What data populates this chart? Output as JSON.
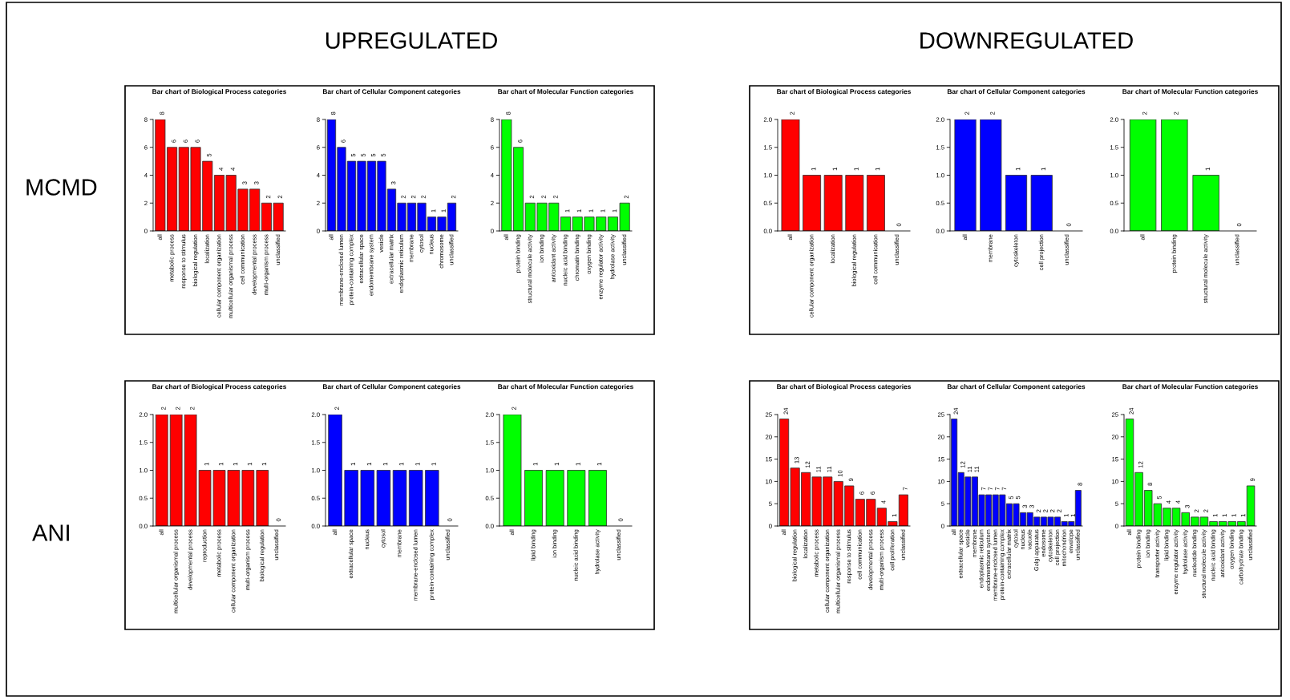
{
  "chart_data": [
    {
      "type": "bar",
      "title": "Bar chart of Biological Process categories",
      "categories": [
        "all",
        "metabolic process",
        "response to stimulus",
        "biological regulation",
        "localization",
        "cellular component organization",
        "multicellular organismal process",
        "cell communication",
        "developmental process",
        "multi-organism process",
        "unclassified"
      ],
      "values": [
        8,
        6,
        6,
        6,
        5,
        4,
        4,
        3,
        3,
        2,
        2
      ],
      "color": "#ff0000",
      "ylim": [
        0,
        8
      ],
      "yticks": [
        0,
        2,
        4,
        6,
        8
      ],
      "data_labels": true
    },
    {
      "type": "bar",
      "title": "Bar chart of Cellular Component categories",
      "categories": [
        "all",
        "membrane-enclosed lumen",
        "protein-containing complex",
        "extracellular space",
        "endomembrane system",
        "vesicle",
        "extracellular matrix",
        "endoplasmic reticulum",
        "membrane",
        "cytosol",
        "nucleus",
        "chromosome",
        "unclassified"
      ],
      "values": [
        8,
        6,
        5,
        5,
        5,
        5,
        3,
        2,
        2,
        2,
        1,
        1,
        2
      ],
      "color": "#0000ff",
      "ylim": [
        0,
        8
      ],
      "yticks": [
        0,
        2,
        4,
        6,
        8
      ],
      "data_labels": true
    },
    {
      "type": "bar",
      "title": "Bar chart of Molecular Function categories",
      "categories": [
        "all",
        "protein binding",
        "structural molecule activity",
        "ion binding",
        "antioxidant activity",
        "nucleic acid binding",
        "chromatin binding",
        "oxygen binding",
        "enzyme regulator activity",
        "hydrolase activity",
        "unclassified"
      ],
      "values": [
        8,
        6,
        2,
        2,
        2,
        1,
        1,
        1,
        1,
        1,
        2
      ],
      "color": "#00ff00",
      "ylim": [
        0,
        8
      ],
      "yticks": [
        0,
        2,
        4,
        6,
        8
      ],
      "data_labels": true
    },
    {
      "type": "bar",
      "title": "Bar chart of Biological Process categories",
      "categories": [
        "all",
        "cellular component organization",
        "localization",
        "biological regulation",
        "cell communication",
        "unclassified"
      ],
      "values": [
        2,
        1,
        1,
        1,
        1,
        0
      ],
      "color": "#ff0000",
      "ylim": [
        0,
        2
      ],
      "yticks": [
        {
          "value": 0,
          "label": "0.0"
        },
        {
          "value": 0.5,
          "label": "0.5"
        },
        {
          "value": 1,
          "label": "1.0"
        },
        {
          "value": 1.5,
          "label": "1.5"
        },
        {
          "value": 2,
          "label": "2.0"
        }
      ],
      "data_labels": true
    },
    {
      "type": "bar",
      "title": "Bar chart of Cellular Component categories",
      "categories": [
        "all",
        "membrane",
        "cytoskeleton",
        "cell projection",
        "unclassified"
      ],
      "values": [
        2,
        2,
        1,
        1,
        0
      ],
      "color": "#0000ff",
      "ylim": [
        0,
        2
      ],
      "yticks": [
        {
          "value": 0,
          "label": "0.0"
        },
        {
          "value": 0.5,
          "label": "0.5"
        },
        {
          "value": 1,
          "label": "1.0"
        },
        {
          "value": 1.5,
          "label": "1.5"
        },
        {
          "value": 2,
          "label": "2.0"
        }
      ],
      "data_labels": true
    },
    {
      "type": "bar",
      "title": "Bar chart of Molecular Function categories",
      "categories": [
        "all",
        "protein binding",
        "structural molecule activity",
        "unclassified"
      ],
      "values": [
        2,
        2,
        1,
        0
      ],
      "color": "#00ff00",
      "ylim": [
        0,
        2
      ],
      "yticks": [
        {
          "value": 0,
          "label": "0.0"
        },
        {
          "value": 0.5,
          "label": "0.5"
        },
        {
          "value": 1,
          "label": "1.0"
        },
        {
          "value": 1.5,
          "label": "1.5"
        },
        {
          "value": 2,
          "label": "2.0"
        }
      ],
      "data_labels": true
    },
    {
      "type": "bar",
      "title": "Bar chart of Biological Process categories",
      "categories": [
        "all",
        "multicellular organismal process",
        "developmental process",
        "reproduction",
        "metabolic process",
        "cellular component organization",
        "multi-organism process",
        "biological regulation",
        "unclassified"
      ],
      "values": [
        2,
        2,
        2,
        1,
        1,
        1,
        1,
        1,
        0
      ],
      "color": "#ff0000",
      "ylim": [
        0,
        2
      ],
      "yticks": [
        {
          "value": 0,
          "label": "0.0"
        },
        {
          "value": 0.5,
          "label": "0.5"
        },
        {
          "value": 1,
          "label": "1.0"
        },
        {
          "value": 1.5,
          "label": "1.5"
        },
        {
          "value": 2,
          "label": "2.0"
        }
      ],
      "data_labels": true
    },
    {
      "type": "bar",
      "title": "Bar chart of Cellular Component categories",
      "categories": [
        "all",
        "extracellular space",
        "nucleus",
        "cytosol",
        "membrane",
        "membrane-enclosed lumen",
        "protein-containing complex",
        "unclassified"
      ],
      "values": [
        2,
        1,
        1,
        1,
        1,
        1,
        1,
        0
      ],
      "color": "#0000ff",
      "ylim": [
        0,
        2
      ],
      "yticks": [
        {
          "value": 0,
          "label": "0.0"
        },
        {
          "value": 0.5,
          "label": "0.5"
        },
        {
          "value": 1,
          "label": "1.0"
        },
        {
          "value": 1.5,
          "label": "1.5"
        },
        {
          "value": 2,
          "label": "2.0"
        }
      ],
      "data_labels": true
    },
    {
      "type": "bar",
      "title": "Bar chart of Molecular Function categories",
      "categories": [
        "all",
        "lipid binding",
        "ion binding",
        "nucleic acid binding",
        "hydrolase activity",
        "unclassified"
      ],
      "values": [
        2,
        1,
        1,
        1,
        1,
        0
      ],
      "color": "#00ff00",
      "ylim": [
        0,
        2
      ],
      "yticks": [
        {
          "value": 0,
          "label": "0.0"
        },
        {
          "value": 0.5,
          "label": "0.5"
        },
        {
          "value": 1,
          "label": "1.0"
        },
        {
          "value": 1.5,
          "label": "1.5"
        },
        {
          "value": 2,
          "label": "2.0"
        }
      ],
      "data_labels": true
    },
    {
      "type": "bar",
      "title": "Bar chart of Biological Process categories",
      "categories": [
        "all",
        "biological regulation",
        "localization",
        "metabolic process",
        "cellular component organization",
        "multicellular organismal process",
        "response to stimulus",
        "cell communication",
        "developmental process",
        "multi-organism process",
        "cell proliferation",
        "unclassified"
      ],
      "values": [
        24,
        13,
        12,
        11,
        11,
        10,
        9,
        6,
        6,
        4,
        1,
        7
      ],
      "color": "#ff0000",
      "ylim": [
        0,
        25
      ],
      "yticks": [
        0,
        5,
        10,
        15,
        20,
        25
      ],
      "data_labels": true
    },
    {
      "type": "bar",
      "title": "Bar chart of Cellular Component categories",
      "categories": [
        "all",
        "extracellular space",
        "vesicle",
        "membrane",
        "endoplasmic reticulum",
        "endomembrane system",
        "membrane-enclosed lumen",
        "protein-containing complex",
        "extracellular matrix",
        "cytosol",
        "nucleus",
        "vacuole",
        "Golgi apparatus",
        "endosome",
        "cytoskeleton",
        "cell projection",
        "mitochondrion",
        "envelope",
        "unclassified"
      ],
      "values": [
        24,
        12,
        11,
        11,
        7,
        7,
        7,
        7,
        5,
        5,
        3,
        3,
        2,
        2,
        2,
        2,
        1,
        1,
        8
      ],
      "color": "#0000ff",
      "ylim": [
        0,
        25
      ],
      "yticks": [
        0,
        5,
        10,
        15,
        20,
        25
      ],
      "data_labels": true
    },
    {
      "type": "bar",
      "title": "Bar chart of Molecular Function categories",
      "categories": [
        "all",
        "protein binding",
        "ion binding",
        "transporter activity",
        "lipid binding",
        "enzyme regulator activity",
        "hydrolase activity",
        "nucleotide binding",
        "structural molecule activity",
        "nucleic acid binding",
        "antioxidant activity",
        "oxygen binding",
        "carbohydrate binding",
        "unclassified"
      ],
      "values": [
        24,
        12,
        8,
        5,
        4,
        4,
        3,
        2,
        2,
        1,
        1,
        1,
        1,
        9
      ],
      "color": "#00ff00",
      "ylim": [
        0,
        25
      ],
      "yticks": [
        0,
        5,
        10,
        15,
        20,
        25
      ],
      "data_labels": true
    },
    {
      "type": "other",
      "annotations": [
        "UPREGULATED",
        "DOWNREGULATED",
        "MCMD",
        "ANI"
      ]
    }
  ]
}
